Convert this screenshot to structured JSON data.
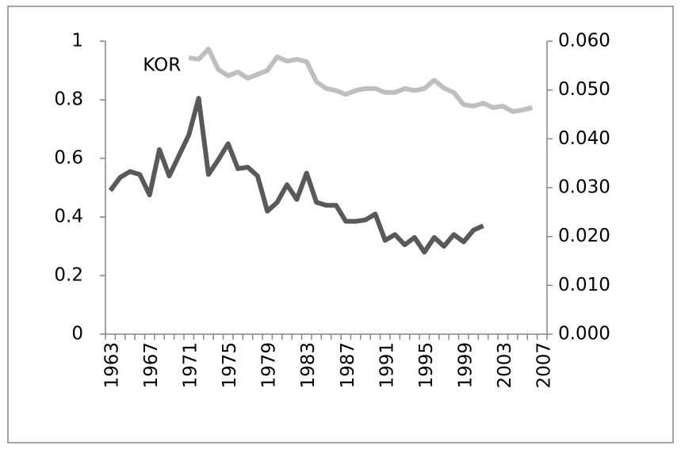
{
  "chart_data": {
    "type": "line",
    "categories": [
      "1963",
      null,
      null,
      null,
      "1967",
      null,
      null,
      null,
      "1971",
      null,
      null,
      null,
      "1975",
      null,
      null,
      null,
      "1979",
      null,
      null,
      null,
      "1983",
      null,
      null,
      null,
      "1987",
      null,
      null,
      null,
      "1991",
      null,
      null,
      null,
      "1995",
      null,
      null,
      null,
      "1999",
      null,
      null,
      null,
      "2003",
      null,
      null,
      null,
      "2007"
    ],
    "series": [
      {
        "color": "#595959",
        "values": [
          0.49,
          0.535,
          0.555,
          0.545,
          0.475,
          0.63,
          0.54,
          0.61,
          0.68,
          0.805,
          0.545,
          0.595,
          0.65,
          0.565,
          0.57,
          0.54,
          0.42,
          0.45,
          0.51,
          0.46,
          0.55,
          0.45,
          0.44,
          0.44,
          0.385,
          0.385,
          0.39,
          0.41,
          0.32,
          0.34,
          0.305,
          0.33,
          0.28,
          0.33,
          0.3,
          0.34,
          0.315,
          0.355,
          0.37,
          null,
          null,
          null,
          null,
          null,
          null
        ]
      },
      {
        "name": "KOR",
        "color": "#bfbfbf",
        "axis": "y2",
        "values": [
          null,
          null,
          null,
          null,
          null,
          null,
          null,
          null,
          0.0566,
          0.0563,
          0.0584,
          0.0542,
          0.0529,
          0.0537,
          0.0524,
          0.0532,
          0.054,
          0.0568,
          0.0559,
          0.0563,
          0.0558,
          0.0517,
          0.0503,
          0.0499,
          0.0491,
          0.0499,
          0.0503,
          0.0503,
          0.0495,
          0.0495,
          0.0503,
          0.0499,
          0.0503,
          0.052,
          0.0504,
          0.0495,
          0.047,
          0.0467,
          0.0473,
          0.0464,
          0.0467,
          0.0456,
          0.0459,
          0.0464,
          null
        ]
      }
    ],
    "ylim": [
      0,
      1
    ],
    "yticks": [
      0,
      0.2,
      0.4,
      0.6,
      0.8,
      1
    ],
    "y2lim": [
      0,
      0.06
    ],
    "y2ticks": [
      {
        "value": 0,
        "label": "0.000"
      },
      {
        "value": 0.01,
        "label": "0.010"
      },
      {
        "value": 0.02,
        "label": "0.020"
      },
      {
        "value": 0.03,
        "label": "0.030"
      },
      {
        "value": 0.04,
        "label": "0.040"
      },
      {
        "value": 0.05,
        "label": "0.050"
      },
      {
        "value": 0.06,
        "label": "0.060"
      }
    ],
    "grid": false
  }
}
